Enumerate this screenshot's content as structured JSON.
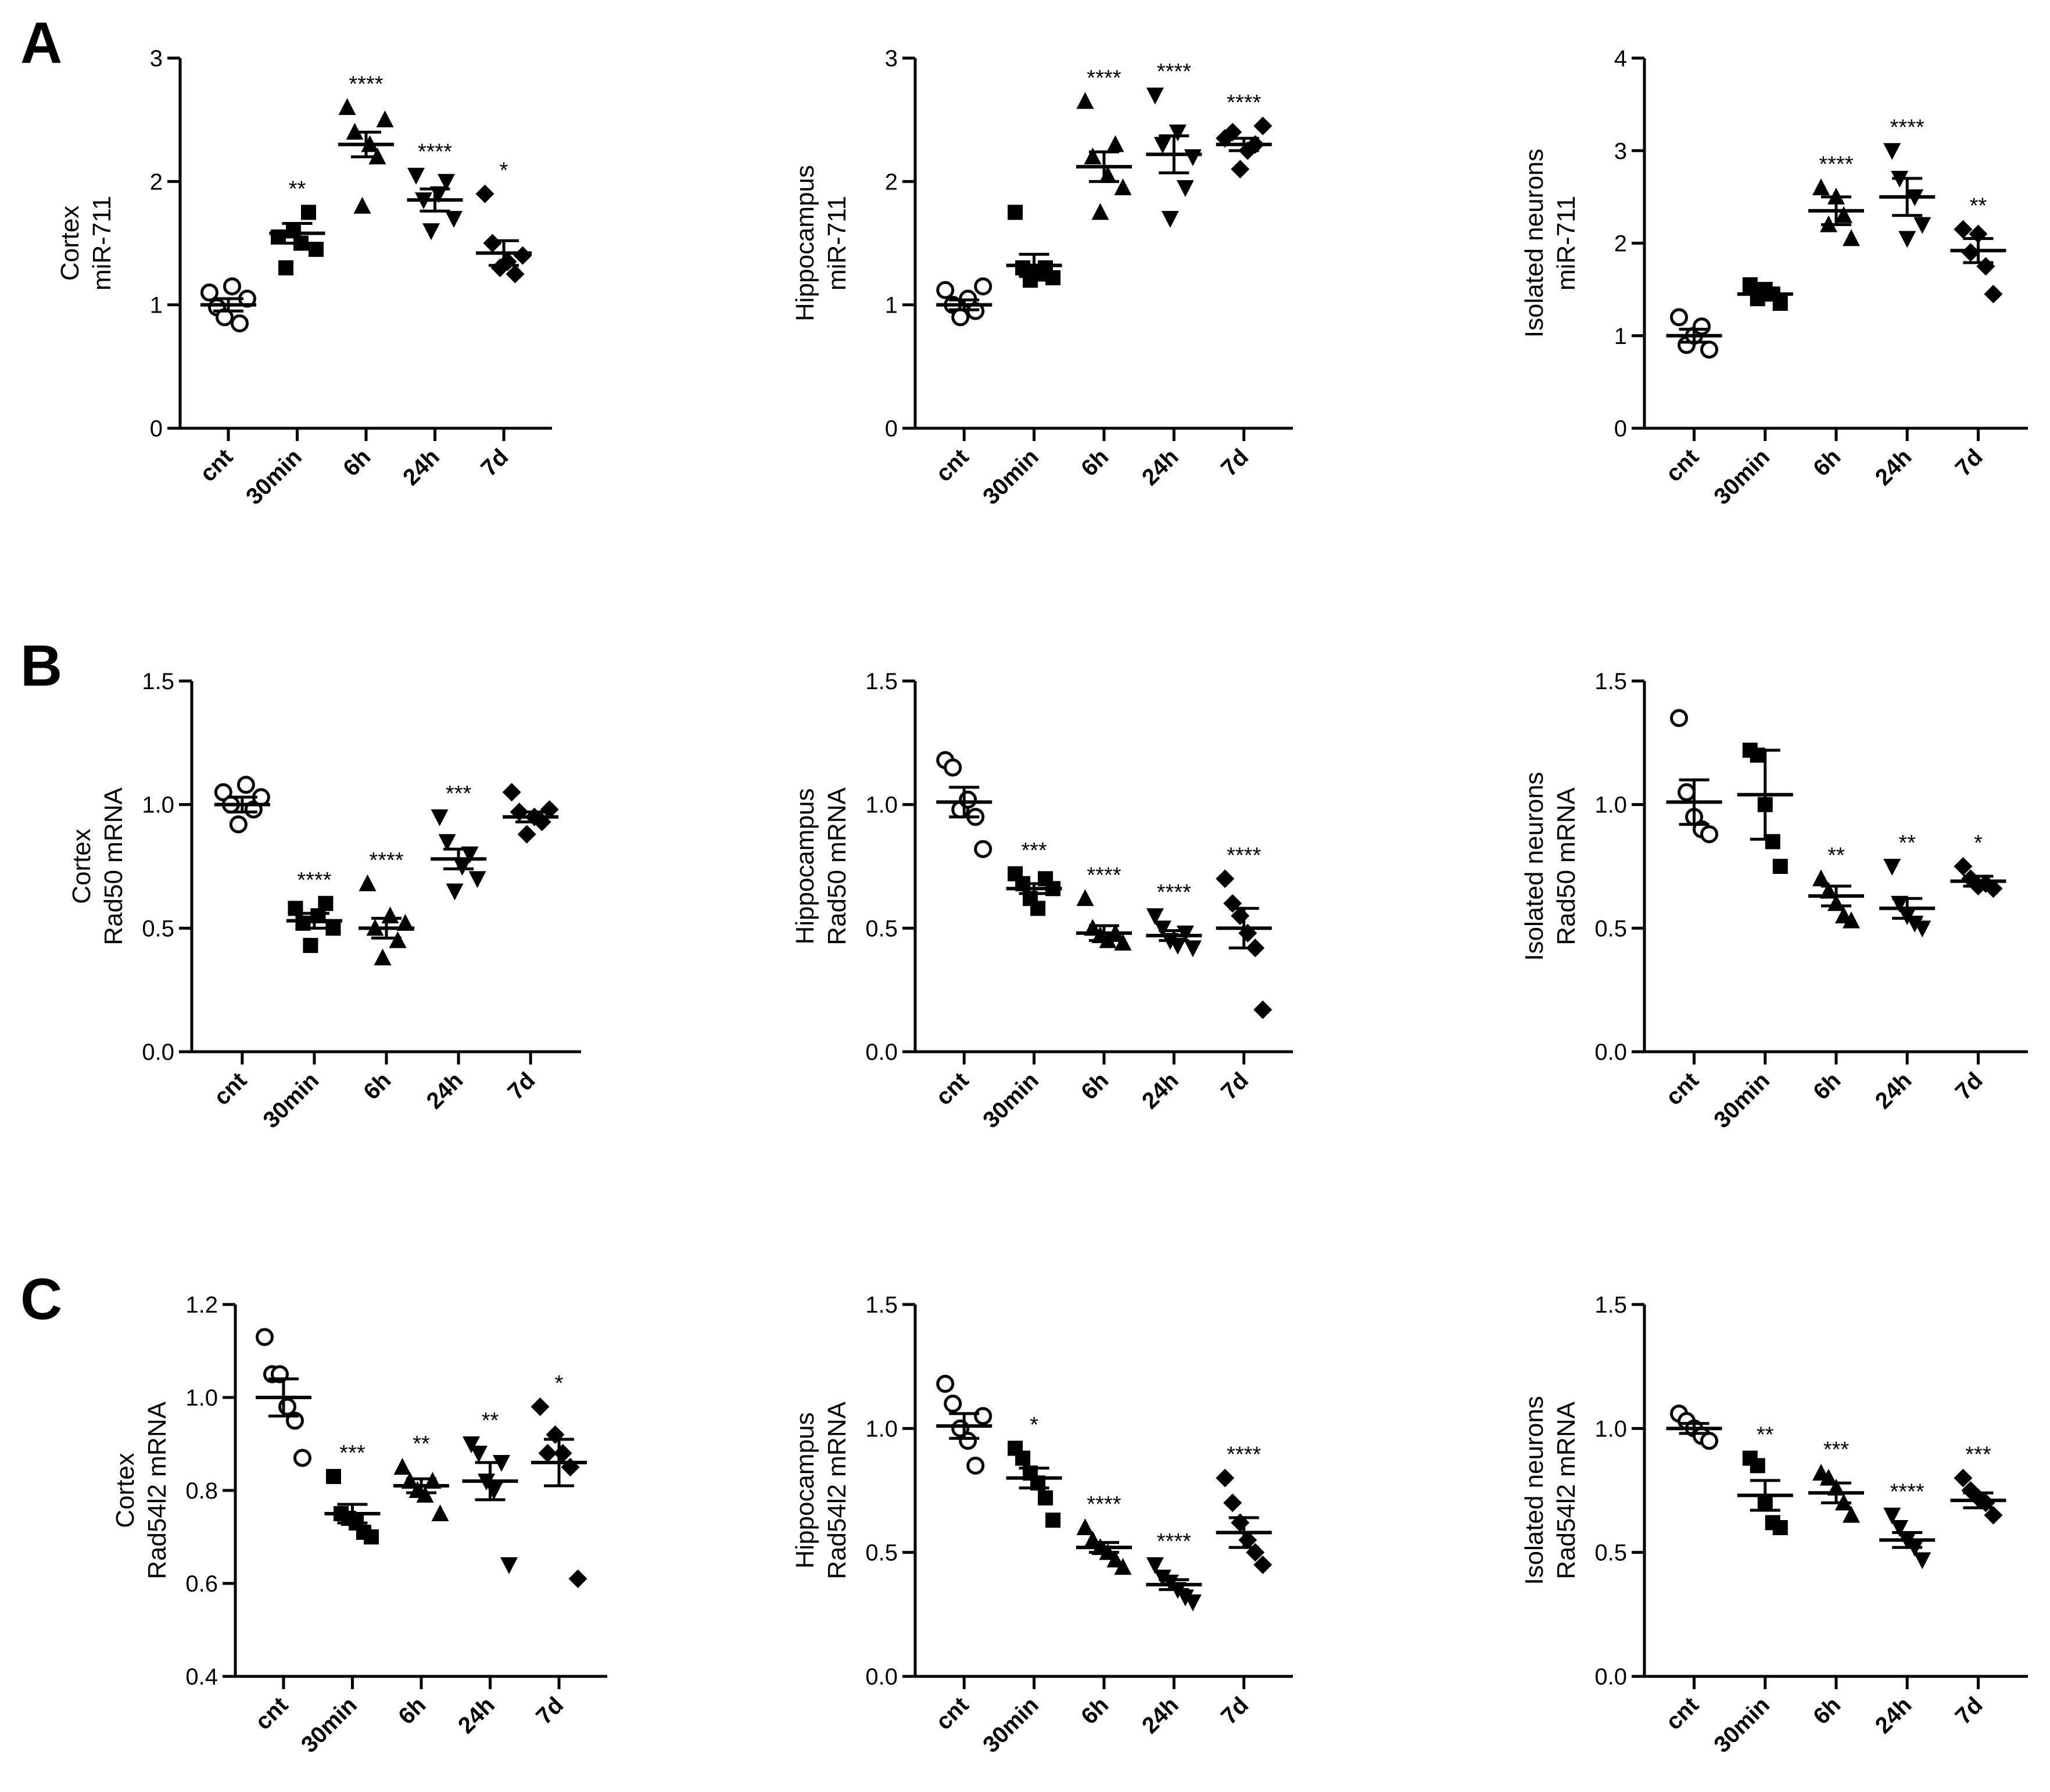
{
  "panel_letters": [
    "A",
    "B",
    "C"
  ],
  "chart_data": [
    {
      "id": "A1",
      "type": "scatter",
      "ylabel": [
        "Cortex",
        "miR-711"
      ],
      "ylim": [
        0,
        3
      ],
      "yticks": [
        0,
        1,
        2,
        3
      ],
      "tick_decimals": 0,
      "categories": [
        "cnt",
        "30min",
        "6h",
        "24h",
        "7d"
      ],
      "markers": [
        "circle-open",
        "square",
        "triangle-up",
        "triangle-down",
        "diamond"
      ],
      "points": [
        [
          1.1,
          0.98,
          0.9,
          1.15,
          0.85,
          1.05
        ],
        [
          1.55,
          1.3,
          1.6,
          1.5,
          1.75,
          1.45
        ],
        [
          2.6,
          2.4,
          1.8,
          2.3,
          2.2,
          2.5
        ],
        [
          2.05,
          1.85,
          1.6,
          1.9,
          2.0,
          1.7
        ],
        [
          1.9,
          1.5,
          1.3,
          1.35,
          1.25,
          1.4
        ]
      ],
      "means": [
        1.0,
        1.58,
        2.3,
        1.85,
        1.42
      ],
      "sem": [
        0.05,
        0.08,
        0.1,
        0.09,
        0.1
      ],
      "significance": [
        "",
        "**",
        "****",
        "****",
        "*"
      ]
    },
    {
      "id": "A2",
      "type": "scatter",
      "ylabel": [
        "Hippocampus",
        "miR-711"
      ],
      "ylim": [
        0,
        3
      ],
      "yticks": [
        0,
        1,
        2,
        3
      ],
      "tick_decimals": 0,
      "categories": [
        "cnt",
        "30min",
        "6h",
        "24h",
        "7d"
      ],
      "markers": [
        "circle-open",
        "square",
        "triangle-up",
        "triangle-down",
        "diamond"
      ],
      "points": [
        [
          1.12,
          1.0,
          0.9,
          1.05,
          0.95,
          1.15
        ],
        [
          1.75,
          1.3,
          1.2,
          1.25,
          1.3,
          1.22
        ],
        [
          2.65,
          2.2,
          1.75,
          2.05,
          2.3,
          1.95
        ],
        [
          2.7,
          2.3,
          1.7,
          2.4,
          1.95,
          2.2
        ],
        [
          2.35,
          2.4,
          2.1,
          2.25,
          2.3,
          2.45
        ]
      ],
      "means": [
        1.0,
        1.32,
        2.12,
        2.22,
        2.3
      ],
      "sem": [
        0.04,
        0.09,
        0.12,
        0.15,
        0.05
      ],
      "significance": [
        "",
        "",
        "****",
        "****",
        "****"
      ]
    },
    {
      "id": "A3",
      "type": "scatter",
      "ylabel": [
        "Isolated neurons",
        "miR-711"
      ],
      "ylim": [
        0,
        4
      ],
      "yticks": [
        0,
        1,
        2,
        3,
        4
      ],
      "tick_decimals": 0,
      "categories": [
        "cnt",
        "30min",
        "6h",
        "24h",
        "7d"
      ],
      "markers": [
        "circle-open",
        "square",
        "triangle-up",
        "triangle-down",
        "diamond"
      ],
      "points": [
        [
          1.2,
          0.9,
          1.0,
          1.1,
          0.85
        ],
        [
          1.55,
          1.4,
          1.5,
          1.45,
          1.35
        ],
        [
          2.6,
          2.2,
          2.5,
          2.3,
          2.05
        ],
        [
          3.0,
          2.7,
          2.05,
          2.5,
          2.2
        ],
        [
          2.15,
          1.9,
          2.1,
          1.75,
          1.45
        ]
      ],
      "means": [
        1.0,
        1.45,
        2.35,
        2.5,
        1.92
      ],
      "sem": [
        0.07,
        0.04,
        0.15,
        0.2,
        0.13
      ],
      "significance": [
        "",
        "",
        "****",
        "****",
        "**"
      ]
    },
    {
      "id": "B1",
      "type": "scatter",
      "ylabel": [
        "Cortex",
        "Rad50 mRNA"
      ],
      "ylim": [
        0,
        1.5
      ],
      "yticks": [
        0,
        0.5,
        1.0,
        1.5
      ],
      "tick_decimals": 1,
      "categories": [
        "cnt",
        "30min",
        "6h",
        "24h",
        "7d"
      ],
      "markers": [
        "circle-open",
        "square",
        "triangle-up",
        "triangle-down",
        "diamond"
      ],
      "points": [
        [
          1.05,
          1.0,
          0.92,
          1.08,
          0.98,
          1.03
        ],
        [
          0.58,
          0.52,
          0.43,
          0.55,
          0.6,
          0.5
        ],
        [
          0.68,
          0.5,
          0.38,
          0.55,
          0.45,
          0.52
        ],
        [
          0.95,
          0.85,
          0.65,
          0.75,
          0.8,
          0.7
        ],
        [
          1.05,
          0.97,
          0.88,
          0.95,
          0.93,
          0.98
        ]
      ],
      "means": [
        1.0,
        0.53,
        0.5,
        0.78,
        0.95
      ],
      "sem": [
        0.03,
        0.03,
        0.04,
        0.04,
        0.02
      ],
      "significance": [
        "",
        "****",
        "****",
        "***",
        ""
      ]
    },
    {
      "id": "B2",
      "type": "scatter",
      "ylabel": [
        "Hippocampus",
        "Rad50 mRNA"
      ],
      "ylim": [
        0,
        1.5
      ],
      "yticks": [
        0,
        0.5,
        1.0,
        1.5
      ],
      "tick_decimals": 1,
      "categories": [
        "cnt",
        "30min",
        "6h",
        "24h",
        "7d"
      ],
      "markers": [
        "circle-open",
        "square",
        "triangle-up",
        "triangle-down",
        "diamond"
      ],
      "points": [
        [
          1.18,
          1.15,
          0.98,
          1.02,
          0.95,
          0.82
        ],
        [
          0.72,
          0.68,
          0.62,
          0.58,
          0.7,
          0.66
        ],
        [
          0.62,
          0.5,
          0.47,
          0.45,
          0.48,
          0.44
        ],
        [
          0.55,
          0.5,
          0.45,
          0.43,
          0.48,
          0.42
        ],
        [
          0.7,
          0.6,
          0.55,
          0.48,
          0.42,
          0.17
        ]
      ],
      "means": [
        1.01,
        0.66,
        0.48,
        0.47,
        0.5
      ],
      "sem": [
        0.06,
        0.02,
        0.03,
        0.02,
        0.08
      ],
      "significance": [
        "",
        "***",
        "****",
        "****",
        "****"
      ]
    },
    {
      "id": "B3",
      "type": "scatter",
      "ylabel": [
        "Isolated neurons",
        "Rad50 mRNA"
      ],
      "ylim": [
        0,
        1.5
      ],
      "yticks": [
        0,
        0.5,
        1.0,
        1.5
      ],
      "tick_decimals": 1,
      "categories": [
        "cnt",
        "30min",
        "6h",
        "24h",
        "7d"
      ],
      "markers": [
        "circle-open",
        "square",
        "triangle-up",
        "triangle-down",
        "diamond"
      ],
      "points": [
        [
          1.35,
          1.05,
          0.95,
          0.9,
          0.88
        ],
        [
          1.22,
          1.2,
          1.0,
          0.85,
          0.75
        ],
        [
          0.7,
          0.65,
          0.6,
          0.55,
          0.53
        ],
        [
          0.75,
          0.6,
          0.55,
          0.52,
          0.5
        ],
        [
          0.75,
          0.7,
          0.67,
          0.68,
          0.66
        ]
      ],
      "means": [
        1.01,
        1.04,
        0.63,
        0.58,
        0.69
      ],
      "sem": [
        0.09,
        0.18,
        0.04,
        0.04,
        0.02
      ],
      "significance": [
        "",
        "",
        "**",
        "**",
        "*"
      ]
    },
    {
      "id": "C1",
      "type": "scatter",
      "ylabel": [
        "Cortex",
        "Rad54l2 mRNA"
      ],
      "ylim": [
        0.4,
        1.2
      ],
      "yticks": [
        0.4,
        0.6,
        0.8,
        1.0,
        1.2
      ],
      "tick_decimals": 1,
      "categories": [
        "cnt",
        "30min",
        "6h",
        "24h",
        "7d"
      ],
      "markers": [
        "circle-open",
        "square",
        "triangle-up",
        "triangle-down",
        "diamond"
      ],
      "points": [
        [
          1.13,
          1.05,
          1.05,
          0.98,
          0.95,
          0.87
        ],
        [
          0.83,
          0.75,
          0.74,
          0.73,
          0.71,
          0.7
        ],
        [
          0.85,
          0.82,
          0.8,
          0.79,
          0.82,
          0.75
        ],
        [
          0.9,
          0.88,
          0.82,
          0.8,
          0.86,
          0.64
        ],
        [
          0.98,
          0.88,
          0.92,
          0.88,
          0.85,
          0.61
        ]
      ],
      "means": [
        1.0,
        0.75,
        0.81,
        0.82,
        0.86
      ],
      "sem": [
        0.04,
        0.02,
        0.015,
        0.04,
        0.05
      ],
      "significance": [
        "",
        "***",
        "**",
        "**",
        "*"
      ]
    },
    {
      "id": "C2",
      "type": "scatter",
      "ylabel": [
        "Hippocampus",
        "Rad54l2 mRNA"
      ],
      "ylim": [
        0,
        1.5
      ],
      "yticks": [
        0,
        0.5,
        1.0,
        1.5
      ],
      "tick_decimals": 1,
      "categories": [
        "cnt",
        "30min",
        "6h",
        "24h",
        "7d"
      ],
      "markers": [
        "circle-open",
        "square",
        "triangle-up",
        "triangle-down",
        "diamond"
      ],
      "points": [
        [
          1.18,
          1.1,
          1.0,
          0.95,
          0.85,
          1.05
        ],
        [
          0.92,
          0.88,
          0.82,
          0.78,
          0.72,
          0.63
        ],
        [
          0.6,
          0.55,
          0.52,
          0.5,
          0.47,
          0.44
        ],
        [
          0.45,
          0.4,
          0.38,
          0.35,
          0.32,
          0.3
        ],
        [
          0.8,
          0.7,
          0.62,
          0.55,
          0.5,
          0.45
        ]
      ],
      "means": [
        1.01,
        0.8,
        0.52,
        0.37,
        0.58
      ],
      "sem": [
        0.05,
        0.04,
        0.02,
        0.02,
        0.06
      ],
      "significance": [
        "",
        "*",
        "****",
        "****",
        "****"
      ]
    },
    {
      "id": "C3",
      "type": "scatter",
      "ylabel": [
        "Isolated neurons",
        "Rad54l2 mRNA"
      ],
      "ylim": [
        0,
        1.5
      ],
      "yticks": [
        0,
        0.5,
        1.0,
        1.5
      ],
      "tick_decimals": 1,
      "categories": [
        "cnt",
        "30min",
        "6h",
        "24h",
        "7d"
      ],
      "markers": [
        "circle-open",
        "square",
        "triangle-up",
        "triangle-down",
        "diamond"
      ],
      "points": [
        [
          1.06,
          1.03,
          1.0,
          0.97,
          0.95
        ],
        [
          0.88,
          0.85,
          0.7,
          0.62,
          0.6
        ],
        [
          0.82,
          0.8,
          0.76,
          0.7,
          0.65
        ],
        [
          0.65,
          0.6,
          0.55,
          0.52,
          0.47
        ],
        [
          0.8,
          0.75,
          0.72,
          0.7,
          0.65
        ]
      ],
      "means": [
        1.0,
        0.73,
        0.74,
        0.55,
        0.71
      ],
      "sem": [
        0.02,
        0.06,
        0.04,
        0.03,
        0.03
      ],
      "significance": [
        "",
        "**",
        "***",
        "****",
        "***"
      ]
    }
  ]
}
